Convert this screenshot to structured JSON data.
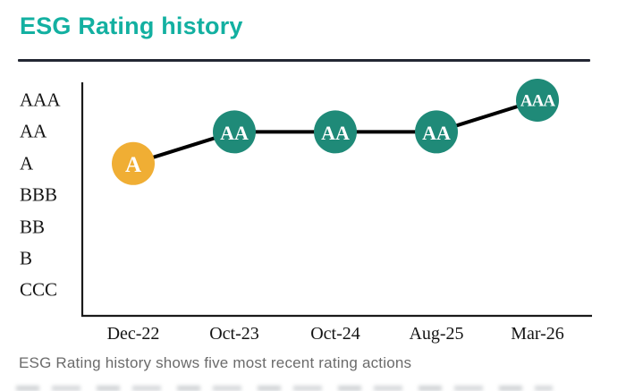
{
  "header": {
    "title": "ESG Rating history"
  },
  "caption": "ESG Rating history shows five most recent rating actions",
  "colors": {
    "title": "#13B0A1",
    "teal_point": "#1F8A78",
    "orange_point": "#F0AE34",
    "connector_line": "#000000",
    "axis": "#1a1a1a",
    "divider": "#232733",
    "caption_text": "#6b6b6b",
    "point_label": "#ffffff"
  },
  "chart_data": {
    "type": "line",
    "title": "ESG Rating history",
    "categories": [
      "Dec-22",
      "Oct-23",
      "Oct-24",
      "Aug-25",
      "Mar-26"
    ],
    "y_levels": [
      "AAA",
      "AA",
      "A",
      "BBB",
      "BB",
      "B",
      "CCC"
    ],
    "series": [
      {
        "name": "ESG rating",
        "values": [
          "A",
          "AA",
          "AA",
          "AA",
          "AAA"
        ]
      }
    ],
    "points": [
      {
        "category": "Dec-22",
        "rating": "A",
        "color": "#F0AE34"
      },
      {
        "category": "Oct-23",
        "rating": "AA",
        "color": "#1F8A78"
      },
      {
        "category": "Oct-24",
        "rating": "AA",
        "color": "#1F8A78"
      },
      {
        "category": "Aug-25",
        "rating": "AA",
        "color": "#1F8A78"
      },
      {
        "category": "Mar-26",
        "rating": "AAA",
        "color": "#1F8A78"
      }
    ],
    "legend": false,
    "grid": false,
    "xlabel": "",
    "ylabel": ""
  }
}
